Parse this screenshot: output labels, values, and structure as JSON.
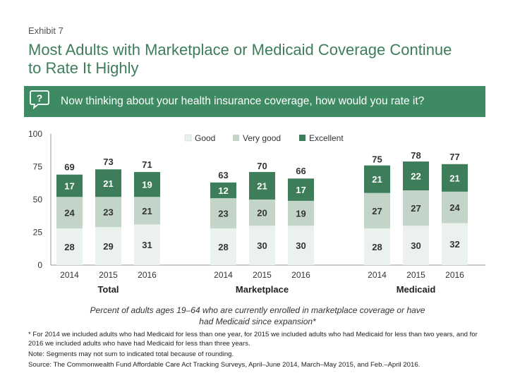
{
  "exhibit": "Exhibit 7",
  "title": "Most Adults with Marketplace or Medicaid Coverage Continue to Rate It Highly",
  "question": "Now thinking about your health insurance coverage, how would you rate it?",
  "subtitle": "Percent of adults ages 19–64 who are currently enrolled in marketplace coverage or have had Medicaid since expansion*",
  "footnote_star": "* For 2014 we included adults who had Medicaid for less than one year, for 2015 we included adults who had Medicaid for less than two years, and for 2016 we included adults who have had Medicaid for less than three years.",
  "note": "Note: Segments may not sum to indicated total because of rounding.",
  "source_label": "Source:",
  "source": "The Commonwealth Fund Affordable Care Act Tracking Surveys, April–June 2014, March–May 2015, and Feb.–April 2016.",
  "colors": {
    "good": "#ebf1ec",
    "very_good": "#c3d5c8",
    "excellent": "#3e7d5a",
    "accent": "#3e8a63"
  },
  "chart_data": {
    "type": "bar",
    "stacked": true,
    "ylim": [
      0,
      100
    ],
    "yticks": [
      0,
      25,
      50,
      75,
      100
    ],
    "legend": [
      "Good",
      "Very good",
      "Excellent"
    ],
    "legend_position": "top-center",
    "groups": [
      {
        "name": "Total",
        "categories": [
          "2014",
          "2015",
          "2016"
        ],
        "good": [
          28,
          29,
          31
        ],
        "very_good": [
          24,
          23,
          21
        ],
        "excellent": [
          17,
          21,
          19
        ],
        "totals": [
          69,
          73,
          71
        ]
      },
      {
        "name": "Marketplace",
        "categories": [
          "2014",
          "2015",
          "2016"
        ],
        "good": [
          28,
          30,
          30
        ],
        "very_good": [
          23,
          20,
          19
        ],
        "excellent": [
          12,
          21,
          17
        ],
        "totals": [
          63,
          70,
          66
        ]
      },
      {
        "name": "Medicaid",
        "categories": [
          "2014",
          "2015",
          "2016"
        ],
        "good": [
          28,
          30,
          32
        ],
        "very_good": [
          27,
          27,
          24
        ],
        "excellent": [
          21,
          22,
          21
        ],
        "totals": [
          75,
          78,
          77
        ]
      }
    ]
  }
}
